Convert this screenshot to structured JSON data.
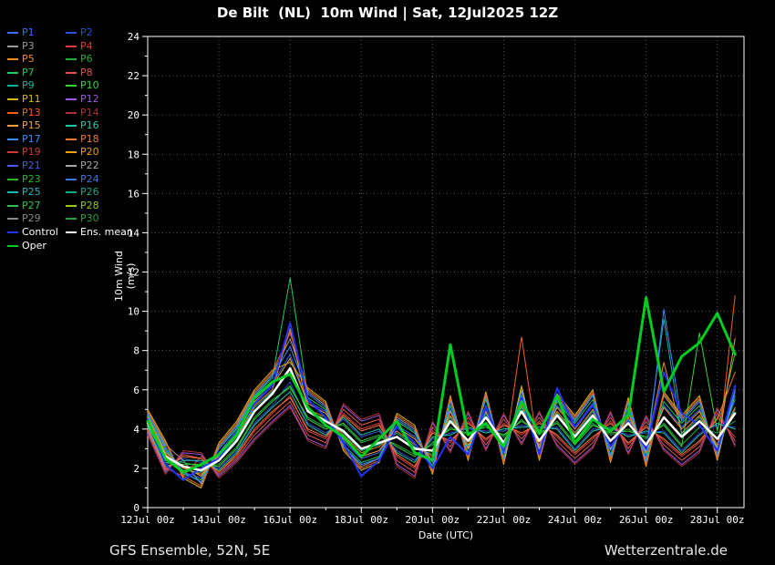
{
  "header": {
    "title": "De Bilt  (NL)  10m Wind | Sat, 12Jul2025 12Z"
  },
  "footer": {
    "left": "GFS Ensemble, 52N, 5E",
    "right": "Wetterzentrale.de"
  },
  "colors": {
    "background": "#000000",
    "text": "#ffffff",
    "grid": "#5a5a5a",
    "axis": "#ffffff",
    "control": "#2233ff",
    "ens_mean": "#ffffff",
    "oper": "#00cc22"
  },
  "legend": {
    "position": "top-left",
    "items": [
      {
        "label": "P1",
        "color": "#3a6bff"
      },
      {
        "label": "P2",
        "color": "#2b4fd8"
      },
      {
        "label": "P3",
        "color": "#9a9a9a"
      },
      {
        "label": "P4",
        "color": "#e03c3c"
      },
      {
        "label": "P5",
        "color": "#f08c1e"
      },
      {
        "label": "P6",
        "color": "#22aa44"
      },
      {
        "label": "P7",
        "color": "#18c964"
      },
      {
        "label": "P8",
        "color": "#e05454"
      },
      {
        "label": "P9",
        "color": "#14b09a"
      },
      {
        "label": "P10",
        "color": "#35d435"
      },
      {
        "label": "P11",
        "color": "#d8b818"
      },
      {
        "label": "P12",
        "color": "#9a5ae0"
      },
      {
        "label": "P13",
        "color": "#f06018"
      },
      {
        "label": "P14",
        "color": "#b03030"
      },
      {
        "label": "P15",
        "color": "#f0a040"
      },
      {
        "label": "P16",
        "color": "#20c8a8"
      },
      {
        "label": "P17",
        "color": "#3a8cff"
      },
      {
        "label": "P18",
        "color": "#f07830"
      },
      {
        "label": "P19",
        "color": "#d03838"
      },
      {
        "label": "P20",
        "color": "#f0a000"
      },
      {
        "label": "P21",
        "color": "#4a5ae8"
      },
      {
        "label": "P22",
        "color": "#a8a8a8"
      },
      {
        "label": "P23",
        "color": "#28b828"
      },
      {
        "label": "P24",
        "color": "#3a78e0"
      },
      {
        "label": "P25",
        "color": "#18b8b8"
      },
      {
        "label": "P26",
        "color": "#10a888"
      },
      {
        "label": "P27",
        "color": "#30c050"
      },
      {
        "label": "P28",
        "color": "#98c818"
      },
      {
        "label": "P29",
        "color": "#8a8a8a"
      },
      {
        "label": "P30",
        "color": "#28a040"
      },
      {
        "label": "Control",
        "color": "#2233ff",
        "text": "#ffffff"
      },
      {
        "label": "Ens. mean",
        "color": "#ffffff",
        "text": "#ffffff"
      },
      {
        "label": "Oper",
        "color": "#00cc22",
        "text": "#ffffff"
      }
    ]
  },
  "chart_data": {
    "type": "line",
    "title": "De Bilt  (NL)  10m Wind | Sat, 12Jul2025 12Z",
    "xlabel": "Date (UTC)",
    "ylabel": "10m Wind (m/s)",
    "ylim": [
      0,
      24
    ],
    "ytick_step": 2,
    "grid": true,
    "x_step_days": 0.5,
    "x_range_days": [
      0,
      16.75
    ],
    "xticks": [
      {
        "day": 0,
        "label": "12Jul 00z"
      },
      {
        "day": 2,
        "label": "14Jul 00z"
      },
      {
        "day": 4,
        "label": "16Jul 00z"
      },
      {
        "day": 6,
        "label": "18Jul 00z"
      },
      {
        "day": 8,
        "label": "20Jul 00z"
      },
      {
        "day": 10,
        "label": "22Jul 00z"
      },
      {
        "day": 12,
        "label": "24Jul 00z"
      },
      {
        "day": 14,
        "label": "26Jul 00z"
      },
      {
        "day": 16,
        "label": "28Jul 00z"
      }
    ],
    "series": [
      {
        "name": "P1",
        "color": "#3a6bff",
        "width": 1,
        "values": [
          4.6,
          2.9,
          1.8,
          1.5,
          2.8,
          3.9,
          5.5,
          6.3,
          7.8,
          5.4,
          4.9,
          3.4,
          2.5,
          2.8,
          4.2,
          3.6,
          2.3,
          5.0,
          3.0,
          5.2,
          2.8,
          5.5,
          3.0,
          5.2,
          4.1,
          5.3,
          2.9,
          4.9,
          2.7,
          5.2,
          4.1,
          5.0,
          3.0,
          5.5
        ]
      },
      {
        "name": "P2",
        "color": "#2b4fd8",
        "width": 1,
        "values": [
          4.1,
          2.2,
          2.5,
          2.3,
          2.0,
          2.9,
          4.3,
          5.2,
          6.4,
          4.3,
          3.8,
          4.5,
          3.6,
          3.9,
          2.9,
          2.4,
          3.5,
          3.8,
          4.0,
          3.9,
          3.9,
          4.2,
          4.0,
          4.1,
          3.0,
          4.0,
          4.0,
          3.7,
          3.8,
          3.9,
          2.9,
          3.8,
          4.2,
          4.1
        ]
      },
      {
        "name": "P3",
        "color": "#9a9a9a",
        "width": 1,
        "values": [
          4.8,
          3.2,
          2.4,
          1.2,
          3.1,
          4.2,
          5.8,
          6.8,
          8.6,
          5.9,
          5.2,
          3.1,
          2.1,
          2.5,
          4.6,
          4.0,
          1.9,
          5.5,
          2.6,
          5.7,
          2.4,
          6.0,
          2.6,
          5.6,
          4.5,
          5.8,
          2.5,
          5.4,
          2.3,
          5.7,
          4.5,
          5.5,
          2.6,
          6.0
        ]
      },
      {
        "name": "P4",
        "color": "#e03c3c",
        "width": 1,
        "values": [
          4.0,
          2.0,
          1.6,
          2.6,
          1.8,
          2.6,
          3.9,
          4.8,
          5.7,
          3.9,
          3.5,
          4.8,
          4.0,
          4.3,
          2.6,
          2.0,
          3.9,
          3.3,
          4.4,
          3.4,
          4.3,
          3.7,
          4.4,
          3.6,
          2.7,
          3.5,
          4.4,
          3.2,
          4.2,
          3.4,
          2.6,
          3.3,
          4.6,
          3.6
        ]
      },
      {
        "name": "P5",
        "color": "#f08c1e",
        "width": 1,
        "values": [
          4.5,
          2.7,
          2.0,
          1.7,
          2.6,
          3.6,
          5.2,
          6.0,
          9.1,
          5.0,
          4.6,
          3.7,
          2.8,
          3.1,
          3.9,
          3.2,
          2.6,
          4.7,
          3.2,
          4.9,
          3.1,
          5.2,
          3.2,
          4.9,
          3.8,
          5.0,
          3.1,
          4.6,
          3.0,
          7.4,
          3.8,
          4.7,
          3.2,
          5.1
        ]
      },
      {
        "name": "P6",
        "color": "#22aa44",
        "width": 1,
        "values": [
          4.2,
          2.4,
          2.3,
          2.1,
          2.2,
          3.1,
          4.6,
          5.5,
          6.1,
          4.6,
          4.1,
          4.2,
          3.3,
          3.6,
          3.2,
          2.7,
          3.2,
          4.1,
          3.7,
          4.2,
          3.6,
          4.5,
          3.7,
          4.4,
          3.3,
          4.3,
          3.7,
          4.0,
          3.5,
          4.3,
          3.2,
          4.1,
          3.8,
          4.4
        ]
      },
      {
        "name": "P7",
        "color": "#18c964",
        "width": 1,
        "values": [
          4.7,
          3.0,
          1.7,
          1.4,
          3.0,
          4.0,
          5.7,
          6.6,
          11.7,
          5.6,
          5.0,
          3.2,
          2.3,
          2.6,
          4.4,
          3.8,
          2.1,
          5.2,
          2.8,
          5.5,
          2.6,
          5.7,
          2.8,
          5.4,
          4.3,
          5.5,
          2.7,
          5.1,
          2.5,
          5.4,
          4.3,
          5.2,
          2.8,
          5.7
        ]
      },
      {
        "name": "P8",
        "color": "#e05454",
        "width": 1,
        "values": [
          3.9,
          1.9,
          2.7,
          2.5,
          1.7,
          2.5,
          3.7,
          4.6,
          5.4,
          3.7,
          3.3,
          5.0,
          4.2,
          4.5,
          2.4,
          1.8,
          4.1,
          3.1,
          4.6,
          3.2,
          4.5,
          3.5,
          4.6,
          3.4,
          2.5,
          3.3,
          4.6,
          3.0,
          4.4,
          3.2,
          2.4,
          3.1,
          4.8,
          3.4
        ]
      },
      {
        "name": "P9",
        "color": "#14b09a",
        "width": 1,
        "values": [
          4.4,
          2.6,
          1.9,
          1.8,
          2.5,
          3.5,
          5.1,
          5.9,
          6.9,
          4.9,
          4.5,
          3.8,
          2.9,
          3.2,
          3.8,
          3.1,
          2.7,
          4.6,
          3.1,
          4.8,
          3.0,
          5.1,
          3.1,
          4.8,
          3.7,
          4.9,
          3.0,
          4.5,
          2.9,
          9.6,
          3.7,
          4.6,
          3.1,
          5.0
        ]
      },
      {
        "name": "P10",
        "color": "#35d435",
        "width": 1,
        "values": [
          4.3,
          2.3,
          2.2,
          2.2,
          2.1,
          3.0,
          4.5,
          5.4,
          6.2,
          4.5,
          4.0,
          4.3,
          3.4,
          3.7,
          3.1,
          2.6,
          3.3,
          4.0,
          3.8,
          4.1,
          3.7,
          4.4,
          3.8,
          4.3,
          3.2,
          4.2,
          3.8,
          3.9,
          3.6,
          4.2,
          3.1,
          8.9,
          3.9,
          7.9
        ]
      },
      {
        "name": "P11",
        "color": "#d8b818",
        "width": 1,
        "values": [
          5.0,
          3.4,
          1.5,
          1.0,
          3.3,
          4.4,
          6.0,
          7.0,
          7.4,
          6.1,
          5.4,
          2.9,
          1.9,
          2.3,
          4.8,
          4.2,
          1.7,
          5.7,
          2.4,
          5.9,
          2.2,
          6.2,
          2.4,
          5.8,
          4.7,
          6.0,
          2.3,
          5.6,
          2.1,
          5.9,
          4.7,
          5.7,
          2.4,
          6.2
        ]
      },
      {
        "name": "P12",
        "color": "#9a5ae0",
        "width": 1,
        "values": [
          3.8,
          1.8,
          2.8,
          2.7,
          1.6,
          2.4,
          3.5,
          4.4,
          5.2,
          3.5,
          3.1,
          5.2,
          4.4,
          4.7,
          2.2,
          1.6,
          4.3,
          2.9,
          4.8,
          3.0,
          4.7,
          3.3,
          4.8,
          3.2,
          2.3,
          3.1,
          4.8,
          2.8,
          4.6,
          3.0,
          2.2,
          2.9,
          5.0,
          3.2
        ]
      },
      {
        "name": "P13",
        "color": "#f06018",
        "width": 1,
        "values": [
          4.9,
          3.3,
          1.6,
          1.1,
          3.2,
          4.3,
          5.9,
          6.9,
          8.9,
          6.0,
          5.3,
          3.0,
          2.0,
          2.4,
          4.7,
          4.1,
          1.8,
          5.6,
          2.5,
          5.8,
          2.3,
          8.7,
          2.5,
          5.7,
          4.6,
          5.9,
          2.4,
          5.5,
          2.2,
          5.8,
          4.6,
          5.6,
          2.5,
          10.8
        ]
      },
      {
        "name": "P14",
        "color": "#b03030",
        "width": 1,
        "values": [
          3.7,
          1.7,
          2.9,
          2.8,
          1.5,
          2.3,
          3.4,
          4.3,
          5.1,
          3.4,
          3.0,
          5.3,
          4.5,
          4.8,
          2.1,
          1.5,
          4.4,
          2.8,
          4.9,
          2.9,
          4.8,
          3.2,
          4.9,
          3.1,
          2.2,
          3.0,
          4.9,
          2.7,
          4.7,
          2.9,
          2.1,
          2.8,
          5.1,
          3.1
        ]
      },
      {
        "name": "P15",
        "color": "#f0a040",
        "width": 1,
        "values": [
          4.6,
          2.8,
          2.1,
          1.6,
          2.7,
          3.8,
          5.4,
          6.2,
          7.6,
          5.3,
          4.8,
          3.5,
          2.6,
          2.9,
          4.1,
          3.5,
          2.4,
          4.9,
          3.0,
          5.1,
          2.9,
          5.4,
          3.0,
          5.1,
          4.0,
          5.2,
          3.0,
          4.8,
          2.8,
          5.1,
          4.0,
          4.9,
          3.0,
          8.6
        ]
      },
      {
        "name": "P16",
        "color": "#20c8a8",
        "width": 1,
        "values": [
          4.1,
          2.1,
          2.4,
          2.4,
          1.9,
          2.8,
          4.2,
          5.1,
          5.9,
          4.2,
          3.7,
          4.6,
          3.7,
          4.0,
          2.8,
          2.3,
          3.6,
          3.7,
          4.1,
          3.8,
          4.0,
          4.1,
          4.1,
          4.0,
          2.9,
          3.9,
          4.1,
          3.6,
          3.9,
          3.8,
          2.8,
          3.7,
          4.3,
          4.0
        ]
      },
      {
        "name": "P17",
        "color": "#3a8cff",
        "width": 1,
        "values": [
          4.8,
          3.1,
          1.8,
          1.3,
          3.0,
          4.1,
          5.7,
          6.7,
          8.2,
          5.8,
          5.1,
          3.1,
          2.2,
          2.5,
          4.5,
          3.9,
          2.0,
          5.4,
          2.7,
          5.6,
          2.5,
          5.9,
          2.7,
          5.5,
          4.4,
          5.7,
          2.6,
          5.3,
          2.4,
          10.1,
          4.4,
          5.4,
          2.7,
          5.9
        ]
      },
      {
        "name": "P18",
        "color": "#f07830",
        "width": 1,
        "values": [
          4.0,
          2.0,
          2.6,
          2.5,
          1.8,
          2.7,
          4.0,
          4.9,
          5.6,
          4.0,
          3.6,
          4.7,
          3.9,
          4.2,
          2.7,
          2.1,
          3.8,
          3.4,
          4.3,
          3.5,
          4.2,
          3.8,
          4.3,
          3.7,
          2.8,
          3.6,
          4.3,
          3.3,
          4.1,
          3.5,
          2.7,
          3.4,
          4.5,
          6.9
        ]
      },
      {
        "name": "Control",
        "color": "#2233ff",
        "width": 2,
        "values": [
          4.5,
          2.2,
          1.4,
          2.0,
          2.5,
          3.8,
          5.3,
          6.2,
          9.4,
          5.5,
          4.6,
          3.3,
          1.6,
          2.4,
          4.1,
          3.3,
          2.0,
          3.6,
          2.7,
          5.1,
          2.9,
          5.6,
          2.7,
          6.1,
          4.1,
          5.2,
          3.1,
          4.4,
          3.0,
          6.9,
          4.8,
          4.2,
          2.9,
          6.2
        ]
      },
      {
        "name": "Ens. mean",
        "color": "#ffffff",
        "width": 2.5,
        "values": [
          4.3,
          2.6,
          2.1,
          1.9,
          2.4,
          3.4,
          4.9,
          5.8,
          7.1,
          4.9,
          4.4,
          3.9,
          3.0,
          3.3,
          3.6,
          3.0,
          2.9,
          4.4,
          3.4,
          4.6,
          3.3,
          4.9,
          3.4,
          4.7,
          3.6,
          4.7,
          3.4,
          4.3,
          3.2,
          4.6,
          3.6,
          4.4,
          3.5,
          4.8
        ]
      },
      {
        "name": "Oper",
        "color": "#00cc22",
        "width": 3,
        "values": [
          4.4,
          2.5,
          1.8,
          2.2,
          2.7,
          3.7,
          5.6,
          6.4,
          6.8,
          5.1,
          4.2,
          3.6,
          2.6,
          3.5,
          4.4,
          2.8,
          2.4,
          8.3,
          3.7,
          4.3,
          3.1,
          5.4,
          3.8,
          5.7,
          3.3,
          4.5,
          3.9,
          4.7,
          10.7,
          5.9,
          7.7,
          8.4,
          9.9,
          7.8
        ]
      }
    ]
  }
}
